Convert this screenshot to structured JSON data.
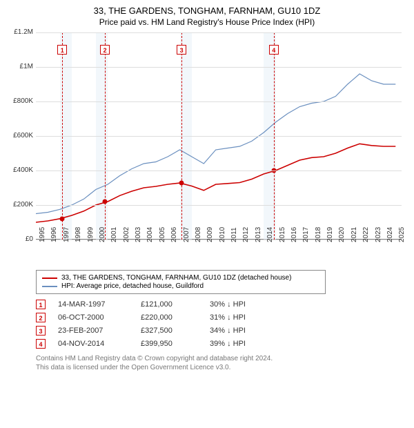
{
  "title_line1": "33, THE GARDENS, TONGHAM, FARNHAM, GU10 1DZ",
  "title_line2": "Price paid vs. HM Land Registry's House Price Index (HPI)",
  "chart": {
    "type": "line",
    "background_color": "#ffffff",
    "grid_color": "#dddddd",
    "band_color": "#e8f0f8",
    "axis_fontsize": 10,
    "x_min": 1995,
    "x_max": 2025.5,
    "y_min": 0,
    "y_max": 1200000,
    "y_ticks": [
      {
        "v": 0,
        "label": "£0"
      },
      {
        "v": 200000,
        "label": "£200K"
      },
      {
        "v": 400000,
        "label": "£400K"
      },
      {
        "v": 600000,
        "label": "£600K"
      },
      {
        "v": 800000,
        "label": "£800K"
      },
      {
        "v": 1000000,
        "label": "£1M"
      },
      {
        "v": 1200000,
        "label": "£1.2M"
      }
    ],
    "x_ticks": [
      1995,
      1996,
      1997,
      1998,
      1999,
      2000,
      2001,
      2002,
      2003,
      2004,
      2005,
      2006,
      2007,
      2008,
      2009,
      2010,
      2011,
      2012,
      2013,
      2014,
      2015,
      2016,
      2017,
      2018,
      2019,
      2020,
      2021,
      2022,
      2023,
      2024,
      2025
    ],
    "band_years": [
      1997,
      2000,
      2007,
      2014
    ],
    "series": [
      {
        "name": "33, THE GARDENS, TONGHAM, FARNHAM, GU10 1DZ (detached house)",
        "color": "#cc0000",
        "line_width": 1.6,
        "points": [
          [
            1995,
            100000
          ],
          [
            1996,
            108000
          ],
          [
            1997,
            121000
          ],
          [
            1998,
            140000
          ],
          [
            1999,
            165000
          ],
          [
            2000,
            200000
          ],
          [
            2001,
            220000
          ],
          [
            2002,
            255000
          ],
          [
            2003,
            280000
          ],
          [
            2004,
            300000
          ],
          [
            2005,
            308000
          ],
          [
            2006,
            320000
          ],
          [
            2007,
            327500
          ],
          [
            2008,
            310000
          ],
          [
            2009,
            285000
          ],
          [
            2010,
            320000
          ],
          [
            2011,
            325000
          ],
          [
            2012,
            330000
          ],
          [
            2013,
            350000
          ],
          [
            2014,
            380000
          ],
          [
            2015,
            399950
          ],
          [
            2016,
            430000
          ],
          [
            2017,
            460000
          ],
          [
            2018,
            475000
          ],
          [
            2019,
            480000
          ],
          [
            2020,
            500000
          ],
          [
            2021,
            530000
          ],
          [
            2022,
            555000
          ],
          [
            2023,
            545000
          ],
          [
            2024,
            540000
          ],
          [
            2025,
            540000
          ]
        ]
      },
      {
        "name": "HPI: Average price, detached house, Guildford",
        "color": "#6a8fbf",
        "line_width": 1.2,
        "points": [
          [
            1995,
            150000
          ],
          [
            1996,
            158000
          ],
          [
            1997,
            175000
          ],
          [
            1998,
            200000
          ],
          [
            1999,
            235000
          ],
          [
            2000,
            290000
          ],
          [
            2001,
            320000
          ],
          [
            2002,
            370000
          ],
          [
            2003,
            410000
          ],
          [
            2004,
            440000
          ],
          [
            2005,
            450000
          ],
          [
            2006,
            480000
          ],
          [
            2007,
            520000
          ],
          [
            2008,
            480000
          ],
          [
            2009,
            440000
          ],
          [
            2010,
            520000
          ],
          [
            2011,
            530000
          ],
          [
            2012,
            540000
          ],
          [
            2013,
            570000
          ],
          [
            2014,
            620000
          ],
          [
            2015,
            680000
          ],
          [
            2016,
            730000
          ],
          [
            2017,
            770000
          ],
          [
            2018,
            790000
          ],
          [
            2019,
            800000
          ],
          [
            2020,
            830000
          ],
          [
            2021,
            900000
          ],
          [
            2022,
            960000
          ],
          [
            2023,
            920000
          ],
          [
            2024,
            900000
          ],
          [
            2025,
            900000
          ]
        ]
      }
    ],
    "sale_markers": [
      {
        "n": "1",
        "year": 1997.2,
        "value": 121000
      },
      {
        "n": "2",
        "year": 2000.76,
        "value": 220000
      },
      {
        "n": "3",
        "year": 2007.15,
        "value": 327500
      },
      {
        "n": "4",
        "year": 2014.84,
        "value": 399950
      }
    ]
  },
  "legend": [
    {
      "color": "#cc0000",
      "label": "33, THE GARDENS, TONGHAM, FARNHAM, GU10 1DZ (detached house)"
    },
    {
      "color": "#6a8fbf",
      "label": "HPI: Average price, detached house, Guildford"
    }
  ],
  "events": [
    {
      "n": "1",
      "date": "14-MAR-1997",
      "price": "£121,000",
      "diff": "30% ↓ HPI"
    },
    {
      "n": "2",
      "date": "06-OCT-2000",
      "price": "£220,000",
      "diff": "31% ↓ HPI"
    },
    {
      "n": "3",
      "date": "23-FEB-2007",
      "price": "£327,500",
      "diff": "34% ↓ HPI"
    },
    {
      "n": "4",
      "date": "04-NOV-2014",
      "price": "£399,950",
      "diff": "39% ↓ HPI"
    }
  ],
  "footer_line1": "Contains HM Land Registry data © Crown copyright and database right 2024.",
  "footer_line2": "This data is licensed under the Open Government Licence v3.0."
}
